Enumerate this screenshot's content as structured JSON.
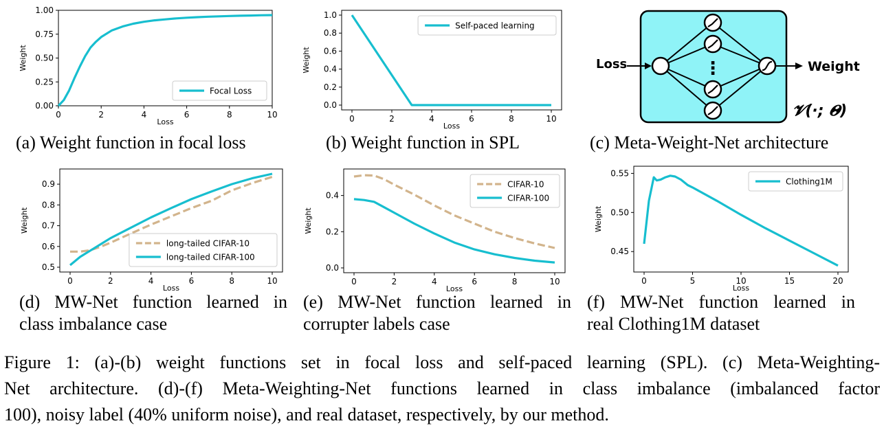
{
  "chart_data": [
    {
      "id": "a",
      "type": "line",
      "xlabel": "Loss",
      "ylabel": "Weight",
      "xlim": [
        0,
        10
      ],
      "ylim": [
        0,
        1
      ],
      "xticks": [
        0,
        2,
        4,
        6,
        8,
        10
      ],
      "yticks": [
        "0.00",
        "0.25",
        "0.50",
        "0.75",
        "1.00"
      ],
      "legend_position": "lower-right",
      "series": [
        {
          "name": "Focal Loss",
          "color": "#17becf",
          "dash": false,
          "x": [
            0,
            0.25,
            0.5,
            0.75,
            1,
            1.25,
            1.5,
            1.75,
            2,
            2.5,
            3,
            3.5,
            4,
            4.5,
            5,
            5.5,
            6,
            6.5,
            7,
            7.5,
            8,
            8.5,
            9,
            9.5,
            10
          ],
          "y": [
            0.0,
            0.06,
            0.16,
            0.29,
            0.41,
            0.52,
            0.61,
            0.67,
            0.72,
            0.79,
            0.83,
            0.86,
            0.88,
            0.895,
            0.905,
            0.915,
            0.922,
            0.928,
            0.933,
            0.937,
            0.94,
            0.943,
            0.945,
            0.948,
            0.95
          ]
        }
      ],
      "caption_label": "(a)",
      "caption": "Weight function in focal loss"
    },
    {
      "id": "b",
      "type": "line",
      "xlabel": "Loss",
      "ylabel": "Weight",
      "xlim": [
        0,
        10
      ],
      "ylim": [
        0,
        1
      ],
      "xticks": [
        0,
        2,
        4,
        6,
        8,
        10
      ],
      "yticks": [
        "0.0",
        "0.2",
        "0.4",
        "0.6",
        "0.8",
        "1.0"
      ],
      "legend_position": "upper-right",
      "series": [
        {
          "name": "Self-paced learning",
          "color": "#17becf",
          "dash": false,
          "x": [
            0,
            3,
            10
          ],
          "y": [
            1.0,
            0.0,
            0.0
          ]
        }
      ],
      "caption_label": "(b)",
      "caption": "Weight function in SPL"
    },
    {
      "id": "d",
      "type": "line",
      "xlabel": "Loss",
      "ylabel": "Weight",
      "xlim": [
        0,
        10
      ],
      "ylim": [
        0.5,
        0.95
      ],
      "xticks": [
        0,
        2,
        4,
        6,
        8,
        10
      ],
      "yticks": [
        "0.5",
        "0.6",
        "0.7",
        "0.8",
        "0.9"
      ],
      "legend_position": "lower-right",
      "series": [
        {
          "name": "long-tailed CIFAR-10",
          "color": "#d2b48c",
          "dash": true,
          "x": [
            0,
            0.5,
            1,
            1.5,
            2,
            3,
            4,
            5,
            6,
            7,
            8,
            9,
            10
          ],
          "y": [
            0.575,
            0.575,
            0.582,
            0.598,
            0.618,
            0.662,
            0.705,
            0.745,
            0.785,
            0.82,
            0.87,
            0.905,
            0.935
          ]
        },
        {
          "name": "long-tailed CIFAR-100",
          "color": "#17becf",
          "dash": false,
          "x": [
            0,
            0.5,
            1,
            1.5,
            2,
            3,
            4,
            5,
            6,
            7,
            8,
            9,
            10
          ],
          "y": [
            0.51,
            0.55,
            0.58,
            0.61,
            0.64,
            0.69,
            0.74,
            0.785,
            0.828,
            0.865,
            0.9,
            0.928,
            0.95
          ]
        }
      ],
      "caption_label": "(d)",
      "caption_lines": [
        "MW-Net function learned in",
        "class imbalance case"
      ]
    },
    {
      "id": "e",
      "type": "line",
      "xlabel": "Loss",
      "ylabel": "Weight",
      "xlim": [
        0,
        10
      ],
      "ylim": [
        0,
        0.52
      ],
      "xticks": [
        0,
        2,
        4,
        6,
        8,
        10
      ],
      "yticks": [
        "0.0",
        "0.2",
        "0.4"
      ],
      "legend_position": "upper-right",
      "series": [
        {
          "name": "CIFAR-10",
          "color": "#d2b48c",
          "dash": true,
          "x": [
            0,
            0.5,
            1,
            1.5,
            2,
            3,
            4,
            5,
            6,
            7,
            8,
            9,
            10
          ],
          "y": [
            0.505,
            0.512,
            0.51,
            0.49,
            0.46,
            0.405,
            0.345,
            0.29,
            0.245,
            0.2,
            0.165,
            0.135,
            0.11
          ]
        },
        {
          "name": "CIFAR-100",
          "color": "#17becf",
          "dash": false,
          "x": [
            0,
            0.5,
            1,
            1.5,
            2,
            3,
            4,
            5,
            6,
            7,
            8,
            9,
            10
          ],
          "y": [
            0.38,
            0.375,
            0.365,
            0.335,
            0.305,
            0.245,
            0.19,
            0.14,
            0.102,
            0.075,
            0.055,
            0.04,
            0.03
          ]
        }
      ],
      "caption_label": "(e)",
      "caption_lines": [
        "MW-Net function learned in",
        "corrupter labels case"
      ]
    },
    {
      "id": "f",
      "type": "line",
      "xlabel": "Loss",
      "ylabel": "Weight",
      "xlim": [
        0,
        20
      ],
      "ylim": [
        0.43,
        0.553
      ],
      "xticks": [
        0,
        5,
        10,
        15,
        20
      ],
      "yticks": [
        "0.45",
        "0.50",
        "0.55"
      ],
      "legend_position": "upper-right",
      "series": [
        {
          "name": "Clothing1M",
          "color": "#17becf",
          "dash": false,
          "x": [
            0,
            0.5,
            1,
            1.3,
            1.7,
            2.2,
            2.7,
            3.2,
            3.8,
            4.5,
            5,
            7.5,
            10,
            12.5,
            15,
            17.5,
            20
          ],
          "y": [
            0.46,
            0.515,
            0.545,
            0.541,
            0.542,
            0.545,
            0.547,
            0.546,
            0.542,
            0.535,
            0.532,
            0.515,
            0.497,
            0.48,
            0.464,
            0.448,
            0.432
          ]
        }
      ],
      "caption_label": "(f)",
      "caption_lines": [
        "MW-Net function learned in",
        "real Clothing1M dataset"
      ]
    }
  ],
  "diagram_c": {
    "input_label": "Loss",
    "output_label": "Weight",
    "ellipsis": "⋮",
    "function_label": "𝓥(·; 𝜣)",
    "box_color": "#8ff3f7",
    "caption_label": "(c)",
    "caption": "Meta-Weight-Net architecture"
  },
  "figure_caption": {
    "lines": [
      "Figure 1: (a)-(b) weight functions set in focal loss and self-paced learning (SPL). (c) Meta-Weighting-",
      "Net architecture. (d)-(f) Meta-Weighting-Net functions learned in class imbalance (imbalanced factor",
      "100), noisy label (40% uniform noise), and real dataset, respectively, by our method."
    ]
  }
}
